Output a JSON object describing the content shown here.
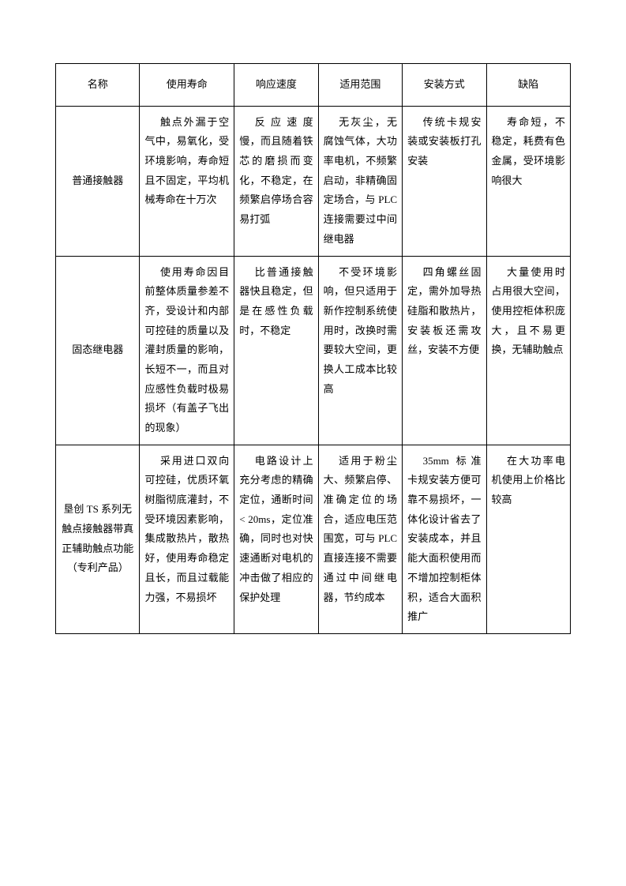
{
  "table": {
    "columns": [
      "名称",
      "使用寿命",
      "响应速度",
      "适用范围",
      "安装方式",
      "缺陷"
    ],
    "rows": [
      {
        "name": "普通接触器",
        "life": "触点外漏于空气中，易氧化，受环境影响，寿命短且不固定，平均机械寿命在十万次",
        "speed": "反应速度慢，而且随着铁芯的磨损而变化，不稳定，在频繁启停场合容易打弧",
        "scope": "无灰尘，无腐蚀气体，大功率电机，不频繁启动，非精确固定场合，与 PLC 连接需要过中间继电器",
        "install": "传统卡规安装或安装板打孔安装",
        "defect": "寿命短，不稳定，耗费有色金属，受环境影响很大"
      },
      {
        "name": "固态继电器",
        "life": "使用寿命因目前整体质量参差不齐，受设计和内部可控硅的质量以及灌封质量的影响，长短不一，而且对应感性负载时极易损坏（有盖子飞出的现象）",
        "speed": "比普通接触器快且稳定，但是在感性负载时，不稳定",
        "scope": "不受环境影响，但只适用于新作控制系统使用时，改换时需要较大空间，更换人工成本比较高",
        "install": "四角螺丝固定，需外加导热硅脂和散热片，安装板还需攻丝，安装不方便",
        "defect": "大量使用时占用很大空间，使用控柜体积庞大，且不易更换，无辅助触点"
      },
      {
        "name": "垦创 TS 系列无触点接触器带真正辅助触点功能 （专利产品）",
        "life": "采用进口双向可控硅，优质环氧树脂彻底灌封，不受环境因素影响，集成散热片，散热好，使用寿命稳定且长，而且过载能力强，不易损坏",
        "speed": "电路设计上充分考虑的精确定位，通断时间 < 20ms，定位准确，同时也对快速通断对电机的冲击做了相应的保护处理",
        "scope": "适用于粉尘大、频繁启停、准确定位的场合，适应电压范围宽，可与 PLC 直接连接不需要通过中间继电器，节约成本",
        "install": "35mm 标准卡规安装方便可靠不易损坏，一体化设计省去了安装成本，并且能大面积使用而不增加控制柜体积，适合大面积推广",
        "defect": "在大功率电机使用上价格比较高"
      }
    ],
    "styling": {
      "border_color": "#000000",
      "background_color": "#ffffff",
      "text_color": "#000000",
      "font_size": 13,
      "line_height": 1.9,
      "cell_padding": "8px 6px",
      "column_widths": [
        "16%",
        "18%",
        "16%",
        "16%",
        "16%",
        "16%"
      ]
    }
  }
}
